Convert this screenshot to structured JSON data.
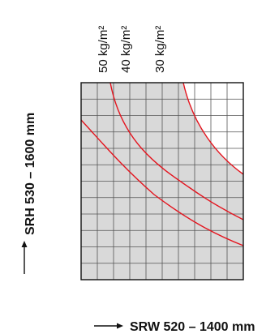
{
  "diagram": {
    "x_axis_label": "SRW 520 – 1400 mm",
    "y_axis_label": "SRH 530 – 1600 mm",
    "curves": [
      {
        "label": "50 kg/m²"
      },
      {
        "label": "40 kg/m²"
      },
      {
        "label": "30 kg/m²"
      }
    ],
    "grid": {
      "columns": 10,
      "rows": 12
    },
    "colors": {
      "curve": "#e4141e",
      "region_fill": "#d9d9d9",
      "grid_line": "#555555",
      "frame": "#111111",
      "text": "#111111"
    }
  }
}
